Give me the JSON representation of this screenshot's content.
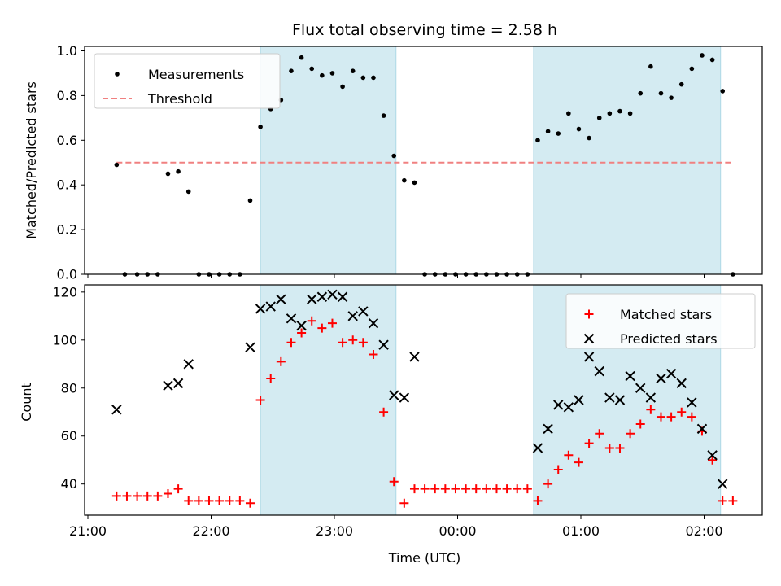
{
  "chart_data": [
    {
      "type": "scatter",
      "title": "Flux total observing time = 2.58 h",
      "ylabel": "Matched/Predicted stars",
      "xlabel": "",
      "ylim": [
        0,
        1.02
      ],
      "yticks": [
        0.0,
        0.2,
        0.4,
        0.6,
        0.8,
        1.0
      ],
      "ytick_labels": [
        "0.0",
        "0.2",
        "0.4",
        "0.6",
        "0.8",
        "1.0"
      ],
      "grid": false,
      "legend_position": "top-left",
      "shaded_ranges": [
        [
          "22:24",
          "23:30"
        ],
        [
          "00:37",
          "02:08"
        ]
      ],
      "threshold": {
        "name": "Threshold",
        "value": 0.5,
        "x_range": [
          "21:14",
          "02:14"
        ],
        "color": "#f08080"
      },
      "series": [
        {
          "name": "Measurements",
          "marker": "dot",
          "color": "#000000",
          "points": [
            [
              "21:14",
              0.49
            ],
            [
              "21:18",
              0.0
            ],
            [
              "21:24",
              0.0
            ],
            [
              "21:29",
              0.0
            ],
            [
              "21:34",
              0.0
            ],
            [
              "21:39",
              0.45
            ],
            [
              "21:44",
              0.46
            ],
            [
              "21:49",
              0.37
            ],
            [
              "21:54",
              0.0
            ],
            [
              "21:59",
              0.0
            ],
            [
              "22:04",
              0.0
            ],
            [
              "22:09",
              0.0
            ],
            [
              "22:14",
              0.0
            ],
            [
              "22:19",
              0.33
            ],
            [
              "22:24",
              0.66
            ],
            [
              "22:29",
              0.74
            ],
            [
              "22:34",
              0.78
            ],
            [
              "22:39",
              0.91
            ],
            [
              "22:44",
              0.97
            ],
            [
              "22:49",
              0.92
            ],
            [
              "22:54",
              0.89
            ],
            [
              "22:59",
              0.9
            ],
            [
              "23:04",
              0.84
            ],
            [
              "23:09",
              0.91
            ],
            [
              "23:14",
              0.88
            ],
            [
              "23:19",
              0.88
            ],
            [
              "23:24",
              0.71
            ],
            [
              "23:29",
              0.53
            ],
            [
              "23:34",
              0.42
            ],
            [
              "23:39",
              0.41
            ],
            [
              "23:44",
              0.0
            ],
            [
              "23:49",
              0.0
            ],
            [
              "23:54",
              0.0
            ],
            [
              "23:59",
              0.0
            ],
            [
              "00:04",
              0.0
            ],
            [
              "00:09",
              0.0
            ],
            [
              "00:14",
              0.0
            ],
            [
              "00:19",
              0.0
            ],
            [
              "00:24",
              0.0
            ],
            [
              "00:29",
              0.0
            ],
            [
              "00:34",
              0.0
            ],
            [
              "00:39",
              0.6
            ],
            [
              "00:44",
              0.64
            ],
            [
              "00:49",
              0.63
            ],
            [
              "00:54",
              0.72
            ],
            [
              "00:59",
              0.65
            ],
            [
              "01:04",
              0.61
            ],
            [
              "01:09",
              0.7
            ],
            [
              "01:14",
              0.72
            ],
            [
              "01:19",
              0.73
            ],
            [
              "01:24",
              0.72
            ],
            [
              "01:29",
              0.81
            ],
            [
              "01:34",
              0.93
            ],
            [
              "01:39",
              0.81
            ],
            [
              "01:44",
              0.79
            ],
            [
              "01:49",
              0.85
            ],
            [
              "01:54",
              0.92
            ],
            [
              "01:59",
              0.98
            ],
            [
              "02:04",
              0.96
            ],
            [
              "02:09",
              0.82
            ],
            [
              "02:14",
              0.0
            ]
          ]
        }
      ]
    },
    {
      "type": "scatter",
      "title": "",
      "ylabel": "Count",
      "xlabel": "Time (UTC)",
      "ylim": [
        27,
        123
      ],
      "yticks": [
        40,
        60,
        80,
        100,
        120
      ],
      "ytick_labels": [
        "40",
        "60",
        "80",
        "100",
        "120"
      ],
      "xticks": [
        "21:00",
        "22:00",
        "23:00",
        "00:00",
        "01:00",
        "02:00"
      ],
      "grid": false,
      "legend_position": "top-right",
      "shaded_ranges": [
        [
          "22:24",
          "23:30"
        ],
        [
          "00:37",
          "02:08"
        ]
      ],
      "series": [
        {
          "name": "Matched stars",
          "marker": "plus",
          "color": "#ff0000",
          "points": [
            [
              "21:14",
              35
            ],
            [
              "21:19",
              35
            ],
            [
              "21:24",
              35
            ],
            [
              "21:29",
              35
            ],
            [
              "21:34",
              35
            ],
            [
              "21:39",
              36
            ],
            [
              "21:44",
              38
            ],
            [
              "21:49",
              33
            ],
            [
              "21:54",
              33
            ],
            [
              "21:59",
              33
            ],
            [
              "22:04",
              33
            ],
            [
              "22:09",
              33
            ],
            [
              "22:14",
              33
            ],
            [
              "22:19",
              32
            ],
            [
              "22:24",
              75
            ],
            [
              "22:29",
              84
            ],
            [
              "22:34",
              91
            ],
            [
              "22:39",
              99
            ],
            [
              "22:44",
              103
            ],
            [
              "22:49",
              108
            ],
            [
              "22:54",
              105
            ],
            [
              "22:59",
              107
            ],
            [
              "23:04",
              99
            ],
            [
              "23:09",
              100
            ],
            [
              "23:14",
              99
            ],
            [
              "23:19",
              94
            ],
            [
              "23:24",
              70
            ],
            [
              "23:29",
              41
            ],
            [
              "23:34",
              32
            ],
            [
              "23:39",
              38
            ],
            [
              "23:44",
              38
            ],
            [
              "23:49",
              38
            ],
            [
              "23:54",
              38
            ],
            [
              "23:59",
              38
            ],
            [
              "00:04",
              38
            ],
            [
              "00:09",
              38
            ],
            [
              "00:14",
              38
            ],
            [
              "00:19",
              38
            ],
            [
              "00:24",
              38
            ],
            [
              "00:29",
              38
            ],
            [
              "00:34",
              38
            ],
            [
              "00:39",
              33
            ],
            [
              "00:44",
              40
            ],
            [
              "00:49",
              46
            ],
            [
              "00:54",
              52
            ],
            [
              "00:59",
              49
            ],
            [
              "01:04",
              57
            ],
            [
              "01:09",
              61
            ],
            [
              "01:14",
              55
            ],
            [
              "01:19",
              55
            ],
            [
              "01:24",
              61
            ],
            [
              "01:29",
              65
            ],
            [
              "01:34",
              71
            ],
            [
              "01:39",
              68
            ],
            [
              "01:44",
              68
            ],
            [
              "01:49",
              70
            ],
            [
              "01:54",
              68
            ],
            [
              "01:59",
              62
            ],
            [
              "02:04",
              50
            ],
            [
              "02:09",
              33
            ],
            [
              "02:14",
              33
            ]
          ]
        },
        {
          "name": "Predicted stars",
          "marker": "x",
          "color": "#000000",
          "points": [
            [
              "21:14",
              71
            ],
            [
              "21:39",
              81
            ],
            [
              "21:44",
              82
            ],
            [
              "21:49",
              90
            ],
            [
              "22:19",
              97
            ],
            [
              "22:24",
              113
            ],
            [
              "22:29",
              114
            ],
            [
              "22:34",
              117
            ],
            [
              "22:39",
              109
            ],
            [
              "22:44",
              106
            ],
            [
              "22:49",
              117
            ],
            [
              "22:54",
              118
            ],
            [
              "22:59",
              119
            ],
            [
              "23:04",
              118
            ],
            [
              "23:09",
              110
            ],
            [
              "23:14",
              112
            ],
            [
              "23:19",
              107
            ],
            [
              "23:24",
              98
            ],
            [
              "23:29",
              77
            ],
            [
              "23:34",
              76
            ],
            [
              "23:39",
              93
            ],
            [
              "00:39",
              55
            ],
            [
              "00:44",
              63
            ],
            [
              "00:49",
              73
            ],
            [
              "00:54",
              72
            ],
            [
              "00:59",
              75
            ],
            [
              "01:04",
              93
            ],
            [
              "01:09",
              87
            ],
            [
              "01:14",
              76
            ],
            [
              "01:19",
              75
            ],
            [
              "01:24",
              85
            ],
            [
              "01:29",
              80
            ],
            [
              "01:34",
              76
            ],
            [
              "01:39",
              84
            ],
            [
              "01:44",
              86
            ],
            [
              "01:49",
              82
            ],
            [
              "01:54",
              74
            ],
            [
              "01:59",
              63
            ],
            [
              "02:04",
              52
            ],
            [
              "02:09",
              40
            ]
          ]
        }
      ]
    }
  ]
}
